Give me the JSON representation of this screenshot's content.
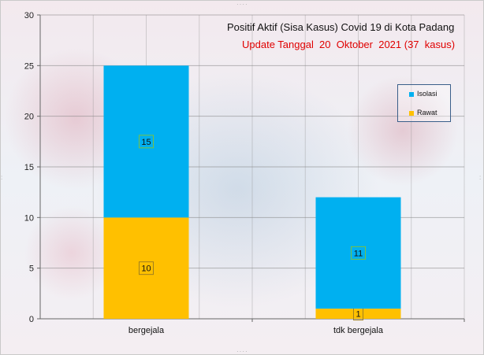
{
  "chart_data": {
    "type": "bar",
    "stacked": true,
    "title": "Positif Aktif  (Sisa Kasus) Covid 19 di Kota Padang",
    "subtitle": "Update Tanggal  20  Oktober  2021 (37  kasus)",
    "categories": [
      "bergejala",
      "tdk bergejala"
    ],
    "series": [
      {
        "name": "Rawat",
        "values": [
          10,
          1
        ],
        "color": "#ffc000"
      },
      {
        "name": "Isolasi",
        "values": [
          15,
          11
        ],
        "color": "#00b0f0"
      }
    ],
    "ylim": [
      0,
      30
    ],
    "yticks": [
      0,
      5,
      10,
      15,
      20,
      25,
      30
    ],
    "grid": true,
    "legend_position": "right",
    "legend_order": [
      "Isolasi",
      "Rawat"
    ]
  }
}
